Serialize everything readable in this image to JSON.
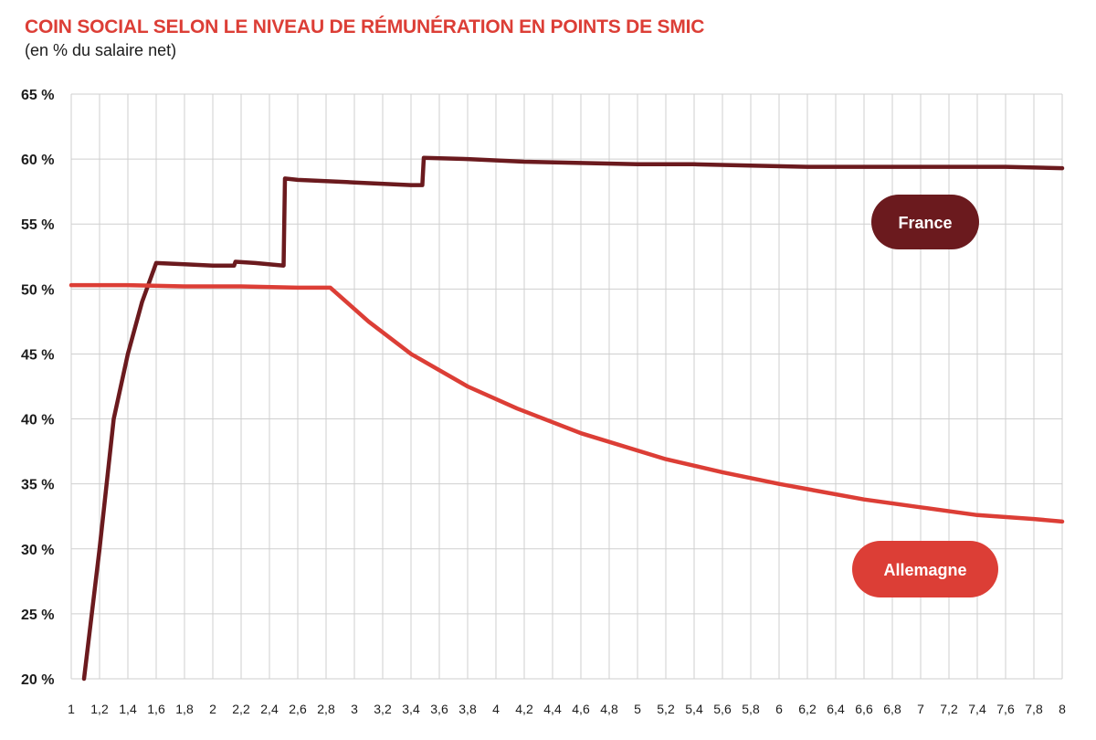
{
  "header": {
    "title": "COIN SOCIAL SELON LE NIVEAU DE RÉMUNÉRATION EN POINTS DE SMIC",
    "subtitle": "(en % du salaire net)"
  },
  "chart_data": {
    "type": "line",
    "title": "COIN SOCIAL SELON LE NIVEAU DE RÉMUNÉRATION EN POINTS DE SMIC",
    "subtitle": "(en % du salaire net)",
    "xlabel": "",
    "ylabel": "",
    "xlim": [
      1,
      8
    ],
    "ylim": [
      20,
      65
    ],
    "y_ticks": [
      "20 %",
      "25 %",
      "30 %",
      "35 %",
      "40 %",
      "45 %",
      "50 %",
      "55 %",
      "60 %",
      "65 %"
    ],
    "x_ticks": [
      "1",
      "1,2",
      "1,4",
      "1,6",
      "1,8",
      "2",
      "2,2",
      "2,4",
      "2,6",
      "2,8",
      "3",
      "3,2",
      "3,4",
      "3,6",
      "3,8",
      "4",
      "4,2",
      "4,4",
      "4,6",
      "4,8",
      "5",
      "5,2",
      "5,4",
      "5,6",
      "5,8",
      "6",
      "6,2",
      "6,4",
      "6,6",
      "6,8",
      "7",
      "7,2",
      "7,4",
      "7,6",
      "7,8",
      "8"
    ],
    "grid": true,
    "legend": "inline labels",
    "series": [
      {
        "name": "France",
        "color": "#6b1a1e",
        "x": [
          1.09,
          1.2,
          1.3,
          1.4,
          1.5,
          1.6,
          1.8,
          2.0,
          2.15,
          2.16,
          2.3,
          2.5,
          2.51,
          2.6,
          3.0,
          3.4,
          3.48,
          3.49,
          3.8,
          4.2,
          4.6,
          5.0,
          5.4,
          5.8,
          6.2,
          6.6,
          7.0,
          7.4,
          7.6,
          8.0
        ],
        "y": [
          20.0,
          30.0,
          40.0,
          45.0,
          49.0,
          52.0,
          51.9,
          51.8,
          51.8,
          52.1,
          52.0,
          51.8,
          58.5,
          58.4,
          58.2,
          58.0,
          58.0,
          60.1,
          60.0,
          59.8,
          59.7,
          59.6,
          59.6,
          59.5,
          59.4,
          59.4,
          59.4,
          59.4,
          59.4,
          59.3
        ]
      },
      {
        "name": "Allemagne",
        "color": "#dc3e36",
        "x": [
          1.0,
          1.4,
          1.8,
          2.2,
          2.6,
          2.83,
          3.1,
          3.4,
          3.8,
          4.15,
          4.6,
          5.2,
          5.6,
          6.0,
          6.6,
          7.0,
          7.4,
          7.8,
          8.0
        ],
        "y": [
          50.3,
          50.3,
          50.2,
          50.2,
          50.1,
          50.1,
          47.5,
          45.0,
          42.5,
          40.8,
          38.9,
          36.9,
          35.9,
          35.0,
          33.8,
          33.2,
          32.6,
          32.3,
          32.1
        ]
      }
    ]
  }
}
